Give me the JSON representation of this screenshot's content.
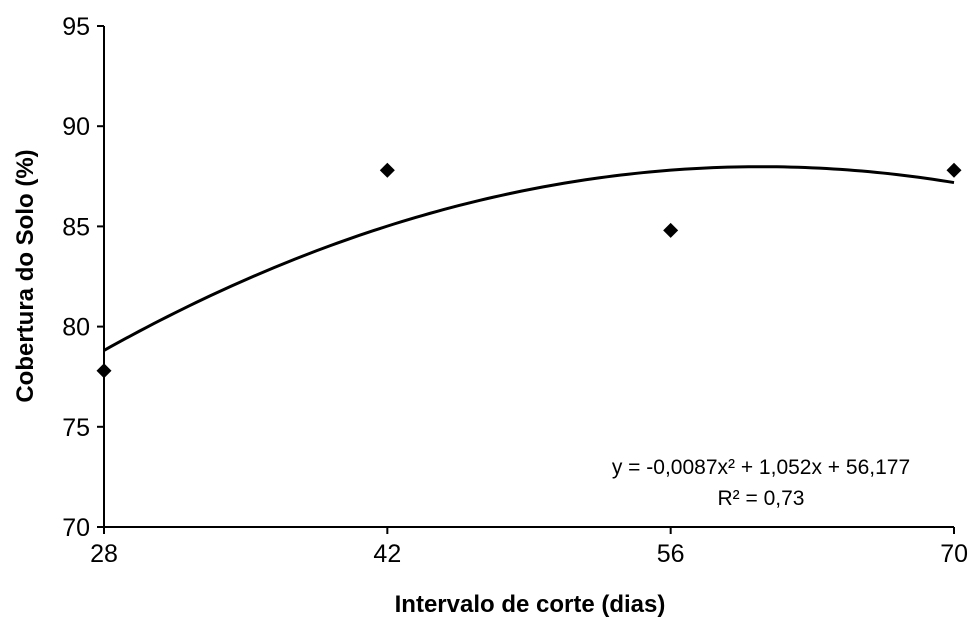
{
  "chart_data": {
    "type": "scatter",
    "x": [
      28,
      42,
      56,
      70
    ],
    "y": [
      77.8,
      87.8,
      84.8,
      87.8
    ],
    "xlabel": "Intervalo de corte (dias)",
    "ylabel": "Cobertura do Solo (%)",
    "xlim": [
      28,
      70
    ],
    "ylim": [
      70,
      95
    ],
    "xticks": [
      "28",
      "42",
      "56",
      "70"
    ],
    "yticks": [
      "70",
      "75",
      "80",
      "85",
      "90",
      "95"
    ],
    "grid": false,
    "marker": "diamond",
    "marker_color": "#000000",
    "trendline": {
      "type": "polynomial",
      "coefficients": [
        -0.0087,
        1.052,
        56.177
      ],
      "equation": "y = -0,0087x² + 1,052x + 56,177",
      "r_squared": "R² = 0,73"
    }
  }
}
